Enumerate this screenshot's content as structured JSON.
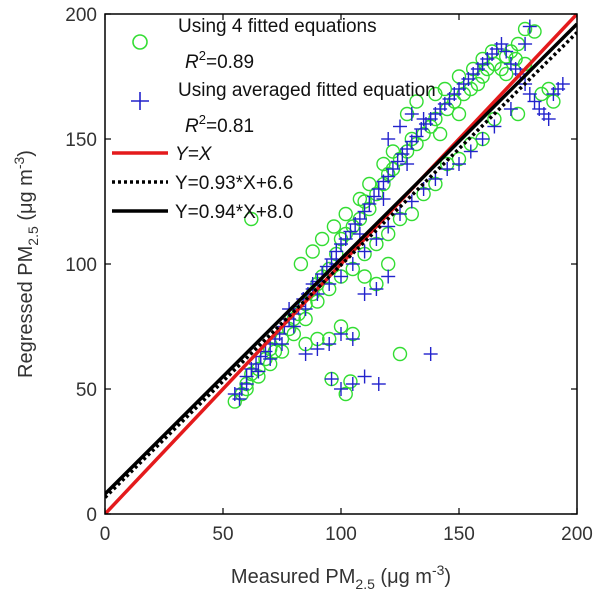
{
  "chart_data": {
    "type": "scatter",
    "xlabel_main": "Measured PM",
    "xlabel_sub": "2.5",
    "xlabel_unit_pre": " (μg m",
    "xlabel_unit_sup": "-3",
    "xlabel_unit_post": ")",
    "ylabel_main": "Regressed PM",
    "ylabel_sub": "2.5",
    "ylabel_unit_pre": " (μg m",
    "ylabel_unit_sup": "-3",
    "ylabel_unit_post": ")",
    "xlim": [
      0,
      200
    ],
    "ylim": [
      0,
      200
    ],
    "xticks": [
      0,
      50,
      100,
      150,
      200
    ],
    "yticks": [
      0,
      50,
      100,
      150,
      200
    ],
    "grid": false,
    "legend": {
      "placement": "top-left",
      "entries": [
        {
          "label": "Using 4 fitted equations",
          "r2_pre": "R",
          "r2_sup": "2",
          "r2_post": "=0.89"
        },
        {
          "label": "Using averaged fitted equation",
          "r2_pre": "R",
          "r2_sup": "2",
          "r2_post": "=0.81"
        },
        {
          "label": "Y=X"
        },
        {
          "label": "Y=0.93*X+6.6"
        },
        {
          "label": "Y=0.94*X+8.0"
        }
      ]
    },
    "lines": [
      {
        "slope": 1.0,
        "intercept": 0,
        "color": "#e41a1c",
        "style": "solid"
      },
      {
        "slope": 0.93,
        "intercept": 6.6,
        "color": "#000000",
        "style": "dotted"
      },
      {
        "slope": 0.94,
        "intercept": 8.0,
        "color": "#000000",
        "style": "solid"
      }
    ],
    "series": [
      {
        "marker": "circle",
        "color": "#33dd33",
        "points": [
          [
            55,
            45
          ],
          [
            58,
            48
          ],
          [
            60,
            52
          ],
          [
            62,
            56
          ],
          [
            65,
            58
          ],
          [
            68,
            62
          ],
          [
            70,
            66
          ],
          [
            72,
            65
          ],
          [
            75,
            70
          ],
          [
            78,
            74
          ],
          [
            80,
            78
          ],
          [
            82,
            80
          ],
          [
            85,
            84
          ],
          [
            88,
            88
          ],
          [
            90,
            92
          ],
          [
            92,
            95
          ],
          [
            95,
            98
          ],
          [
            98,
            104
          ],
          [
            100,
            110
          ],
          [
            102,
            112
          ],
          [
            105,
            115
          ],
          [
            108,
            118
          ],
          [
            110,
            125
          ],
          [
            112,
            122
          ],
          [
            115,
            128
          ],
          [
            118,
            132
          ],
          [
            120,
            136
          ],
          [
            122,
            138
          ],
          [
            125,
            142
          ],
          [
            128,
            145
          ],
          [
            130,
            150
          ],
          [
            132,
            148
          ],
          [
            135,
            152
          ],
          [
            138,
            155
          ],
          [
            140,
            158
          ],
          [
            142,
            152
          ],
          [
            145,
            162
          ],
          [
            148,
            165
          ],
          [
            150,
            160
          ],
          [
            152,
            168
          ],
          [
            155,
            170
          ],
          [
            158,
            172
          ],
          [
            160,
            175
          ],
          [
            162,
            178
          ],
          [
            165,
            180
          ],
          [
            168,
            178
          ],
          [
            170,
            183
          ],
          [
            172,
            185
          ],
          [
            175,
            188
          ],
          [
            178,
            194
          ],
          [
            182,
            193
          ],
          [
            185,
            168
          ],
          [
            188,
            170
          ],
          [
            190,
            165
          ],
          [
            175,
            160
          ],
          [
            165,
            158
          ],
          [
            160,
            150
          ],
          [
            155,
            148
          ],
          [
            150,
            142
          ],
          [
            145,
            140
          ],
          [
            140,
            132
          ],
          [
            135,
            128
          ],
          [
            130,
            120
          ],
          [
            125,
            118
          ],
          [
            120,
            112
          ],
          [
            115,
            108
          ],
          [
            110,
            104
          ],
          [
            105,
            98
          ],
          [
            100,
            95
          ],
          [
            95,
            90
          ],
          [
            90,
            85
          ],
          [
            85,
            78
          ],
          [
            80,
            72
          ],
          [
            75,
            65
          ],
          [
            70,
            60
          ],
          [
            65,
            55
          ],
          [
            60,
            50
          ],
          [
            100,
            75
          ],
          [
            105,
            72
          ],
          [
            95,
            70
          ],
          [
            90,
            70
          ],
          [
            85,
            68
          ],
          [
            110,
            95
          ],
          [
            115,
            92
          ],
          [
            120,
            100
          ],
          [
            125,
            64
          ],
          [
            96,
            54
          ],
          [
            102,
            48
          ],
          [
            104,
            53
          ],
          [
            62,
            118
          ],
          [
            83,
            100
          ],
          [
            88,
            105
          ],
          [
            92,
            110
          ],
          [
            97,
            115
          ],
          [
            102,
            120
          ],
          [
            108,
            126
          ],
          [
            112,
            132
          ],
          [
            118,
            140
          ],
          [
            122,
            145
          ],
          [
            128,
            160
          ],
          [
            132,
            165
          ],
          [
            140,
            168
          ],
          [
            144,
            170
          ],
          [
            150,
            175
          ],
          [
            156,
            178
          ],
          [
            160,
            182
          ],
          [
            164,
            185
          ],
          [
            170,
            176
          ],
          [
            174,
            182
          ],
          [
            178,
            180
          ]
        ]
      },
      {
        "marker": "plus",
        "color": "#2222cc",
        "points": [
          [
            55,
            48
          ],
          [
            58,
            50
          ],
          [
            60,
            55
          ],
          [
            62,
            58
          ],
          [
            64,
            60
          ],
          [
            66,
            63
          ],
          [
            68,
            65
          ],
          [
            70,
            68
          ],
          [
            72,
            70
          ],
          [
            74,
            72
          ],
          [
            76,
            75
          ],
          [
            78,
            78
          ],
          [
            80,
            80
          ],
          [
            82,
            83
          ],
          [
            84,
            86
          ],
          [
            86,
            88
          ],
          [
            88,
            90
          ],
          [
            90,
            93
          ],
          [
            92,
            96
          ],
          [
            94,
            99
          ],
          [
            96,
            102
          ],
          [
            98,
            105
          ],
          [
            100,
            108
          ],
          [
            102,
            110
          ],
          [
            104,
            113
          ],
          [
            106,
            116
          ],
          [
            108,
            118
          ],
          [
            110,
            121
          ],
          [
            112,
            124
          ],
          [
            114,
            127
          ],
          [
            116,
            130
          ],
          [
            118,
            133
          ],
          [
            120,
            135
          ],
          [
            122,
            138
          ],
          [
            124,
            141
          ],
          [
            126,
            144
          ],
          [
            128,
            146
          ],
          [
            130,
            149
          ],
          [
            132,
            151
          ],
          [
            134,
            154
          ],
          [
            136,
            156
          ],
          [
            138,
            158
          ],
          [
            140,
            160
          ],
          [
            142,
            162
          ],
          [
            144,
            164
          ],
          [
            146,
            166
          ],
          [
            148,
            168
          ],
          [
            150,
            170
          ],
          [
            152,
            172
          ],
          [
            154,
            174
          ],
          [
            156,
            176
          ],
          [
            158,
            178
          ],
          [
            160,
            180
          ],
          [
            162,
            182
          ],
          [
            164,
            184
          ],
          [
            166,
            186
          ],
          [
            168,
            188
          ],
          [
            170,
            185
          ],
          [
            172,
            180
          ],
          [
            174,
            178
          ],
          [
            176,
            176
          ],
          [
            178,
            172
          ],
          [
            180,
            168
          ],
          [
            182,
            165
          ],
          [
            184,
            162
          ],
          [
            186,
            160
          ],
          [
            188,
            158
          ],
          [
            190,
            168
          ],
          [
            192,
            170
          ],
          [
            194,
            172
          ],
          [
            100,
            72
          ],
          [
            105,
            70
          ],
          [
            95,
            68
          ],
          [
            90,
            66
          ],
          [
            85,
            64
          ],
          [
            110,
            88
          ],
          [
            115,
            90
          ],
          [
            120,
            95
          ],
          [
            96,
            54
          ],
          [
            100,
            50
          ],
          [
            105,
            52
          ],
          [
            110,
            55
          ],
          [
            116,
            52
          ],
          [
            138,
            64
          ],
          [
            180,
            195
          ],
          [
            178,
            188
          ],
          [
            172,
            162
          ],
          [
            165,
            155
          ],
          [
            160,
            150
          ],
          [
            155,
            145
          ],
          [
            150,
            140
          ],
          [
            145,
            138
          ],
          [
            140,
            134
          ],
          [
            135,
            130
          ],
          [
            130,
            125
          ],
          [
            125,
            120
          ],
          [
            120,
            115
          ],
          [
            115,
            110
          ],
          [
            110,
            105
          ],
          [
            105,
            100
          ],
          [
            100,
            95
          ],
          [
            95,
            92
          ],
          [
            90,
            88
          ],
          [
            85,
            82
          ],
          [
            80,
            75
          ],
          [
            75,
            68
          ],
          [
            70,
            62
          ],
          [
            65,
            57
          ],
          [
            60,
            52
          ],
          [
            57,
            46
          ],
          [
            120,
            150
          ],
          [
            125,
            155
          ],
          [
            130,
            160
          ],
          [
            135,
            158
          ],
          [
            128,
            140
          ],
          [
            118,
            126
          ],
          [
            108,
            112
          ],
          [
            98,
            100
          ],
          [
            88,
            92
          ],
          [
            78,
            82
          ]
        ]
      }
    ]
  }
}
